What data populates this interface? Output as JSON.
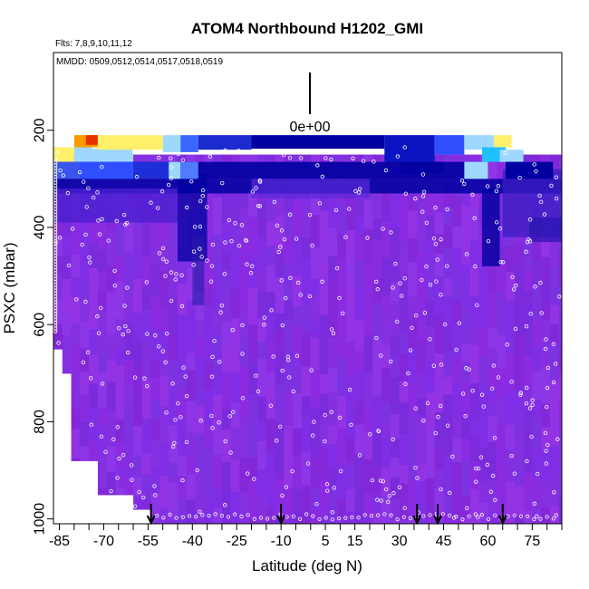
{
  "chart_data": {
    "type": "heatmap",
    "title": "ATOM4 Northbound H1202_GMI",
    "flights_note": "Flts: 7,8,9,10,11,12",
    "dates_note": "MMDD: 0509,0512,0514,0517,0518,0519",
    "legend_value_label": "0e+00",
    "xlabel": "Latitude (deg N)",
    "ylabel": "PSXC (mbar)",
    "xlim": [
      -87,
      85
    ],
    "ylim": [
      1010,
      40
    ],
    "x_tick_values": [
      -85,
      -70,
      -55,
      -40,
      -25,
      -10,
      5,
      15,
      30,
      45,
      60,
      75
    ],
    "x_tick_labels": [
      "-85",
      "-70",
      "-55",
      "-40",
      "-25",
      "-10",
      "5",
      "15",
      "30",
      "45",
      "60",
      "75"
    ],
    "x_minor_ticks": [
      -80,
      -75,
      -65,
      -60,
      -50,
      -45,
      -35,
      -30,
      -20,
      -15,
      -5,
      0,
      10,
      20,
      25,
      35,
      40,
      50,
      55,
      65,
      70,
      80,
      85
    ],
    "y_tick_values": [
      200,
      400,
      600,
      800,
      1000
    ],
    "y_tick_labels": [
      "200",
      "400",
      "600",
      "800",
      "1000"
    ],
    "flight_boundary_latitudes": [
      -54,
      -10,
      36,
      43,
      65
    ],
    "colors": {
      "background_field": "#8a2be2",
      "dark_blue": "#0000a0",
      "blue": "#2f4fff",
      "light_blue": "#9fd8ff",
      "yellow": "#fff06a",
      "orange": "#ff9a00",
      "red": "#e63300",
      "marker": "#ffffff"
    }
  }
}
